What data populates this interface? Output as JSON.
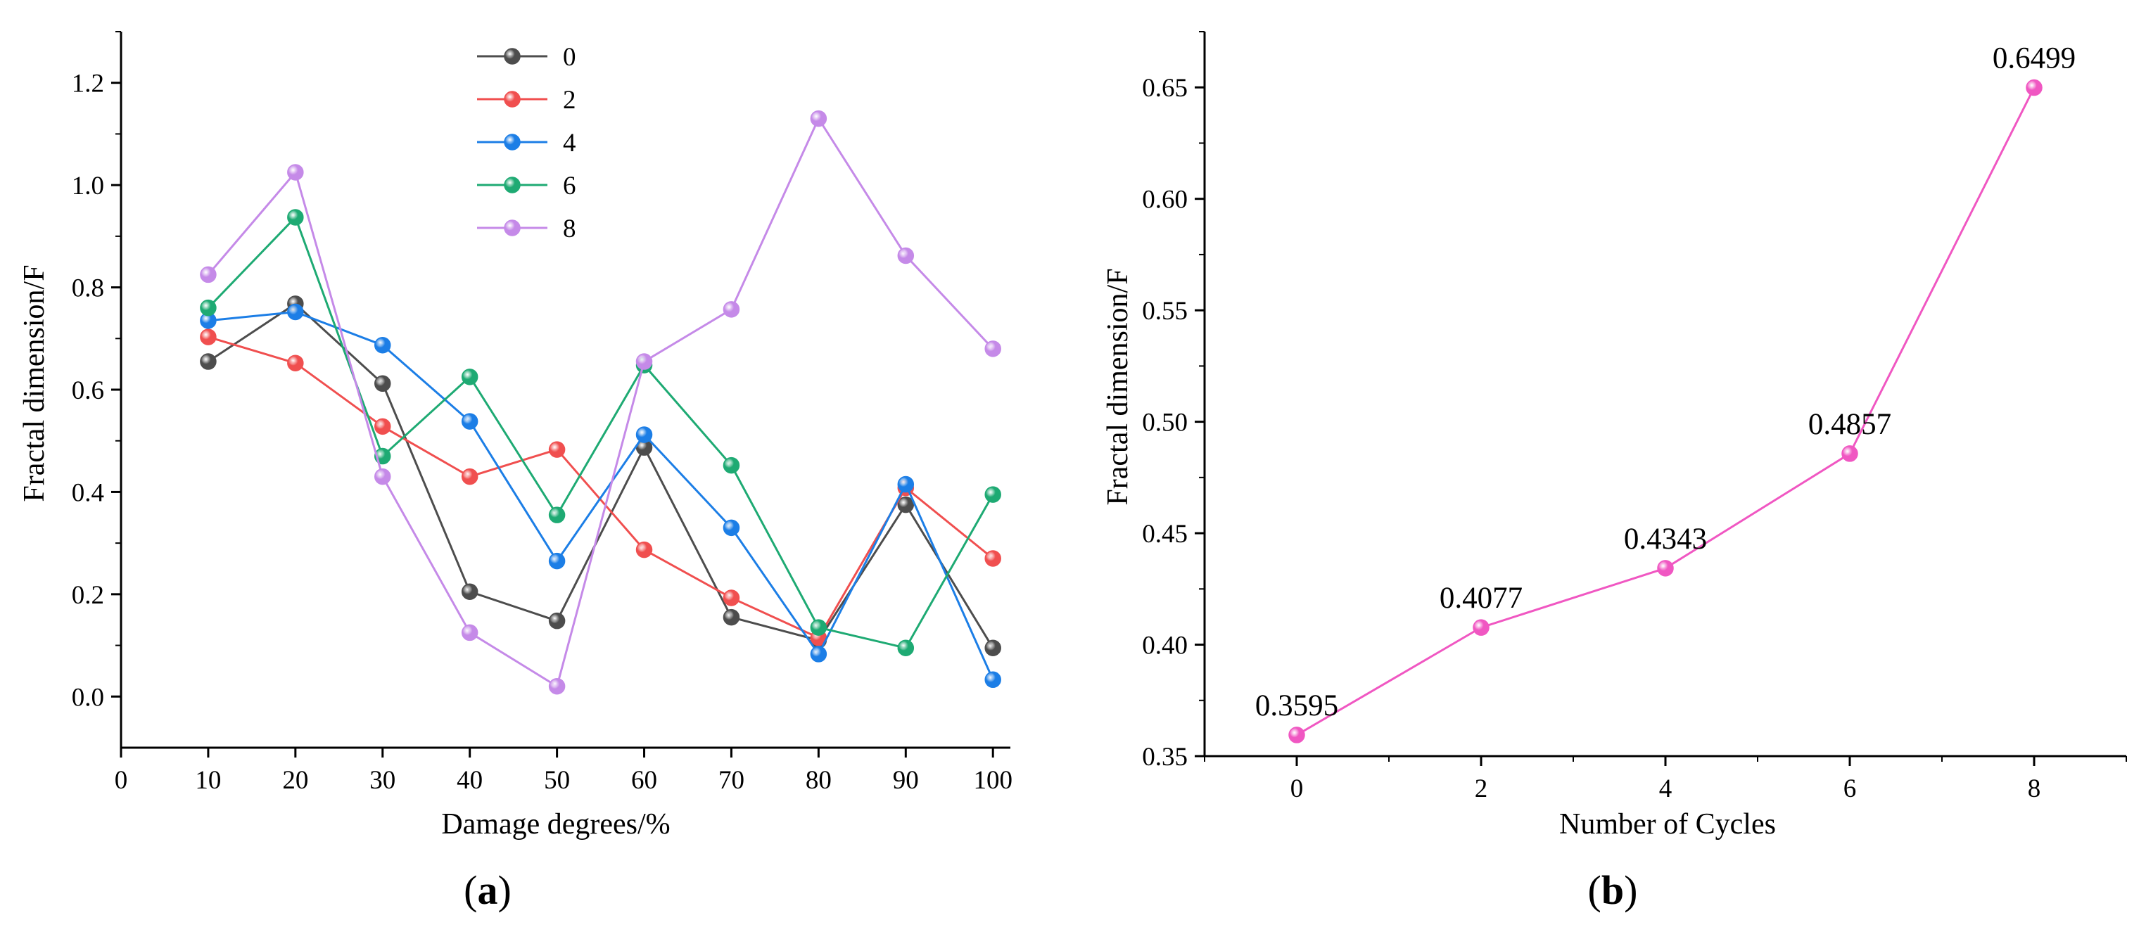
{
  "chart_data": [
    {
      "type": "line",
      "panel_label": "(a)",
      "panel_letter": "a",
      "xlabel": "Damage degrees/%",
      "ylabel": "Fractal dimension/F",
      "xlim": [
        0,
        102
      ],
      "ylim": [
        -0.1,
        1.3
      ],
      "xticks": [
        0,
        10,
        20,
        30,
        40,
        50,
        60,
        70,
        80,
        90,
        100
      ],
      "yticks": [
        0.0,
        0.2,
        0.4,
        0.6,
        0.8,
        1.0,
        1.2
      ],
      "ytick_labels": [
        "0.0",
        "0.2",
        "0.4",
        "0.6",
        "0.8",
        "1.0",
        "1.2"
      ],
      "legend_position": "top-center",
      "x": [
        10,
        20,
        30,
        40,
        50,
        60,
        70,
        80,
        90,
        100
      ],
      "series": [
        {
          "name": "0",
          "color": "#4d4d4d",
          "values": [
            0.655,
            0.768,
            0.612,
            0.205,
            0.148,
            0.487,
            0.155,
            0.11,
            0.375,
            0.095
          ]
        },
        {
          "name": "2",
          "color": "#f04f4f",
          "values": [
            0.703,
            0.652,
            0.528,
            0.43,
            0.483,
            0.287,
            0.193,
            0.115,
            0.408,
            0.27
          ]
        },
        {
          "name": "4",
          "color": "#1c7ee6",
          "values": [
            0.735,
            0.752,
            0.687,
            0.538,
            0.265,
            0.512,
            0.33,
            0.083,
            0.415,
            0.033
          ]
        },
        {
          "name": "6",
          "color": "#1eaa73",
          "values": [
            0.76,
            0.937,
            0.47,
            0.625,
            0.355,
            0.648,
            0.452,
            0.135,
            0.095,
            0.395
          ]
        },
        {
          "name": "8",
          "color": "#c58ae8",
          "values": [
            0.825,
            1.025,
            0.43,
            0.125,
            0.02,
            0.655,
            0.757,
            1.13,
            0.862,
            0.68
          ]
        }
      ]
    },
    {
      "type": "line",
      "panel_label": "(b)",
      "panel_letter": "b",
      "xlabel": "Number of Cycles",
      "ylabel": "Fractal dimension/F",
      "xlim": [
        -1.0,
        9.0
      ],
      "ylim": [
        0.35,
        0.675
      ],
      "xticks": [
        0,
        2,
        4,
        6,
        8
      ],
      "yticks": [
        0.35,
        0.4,
        0.45,
        0.5,
        0.55,
        0.6,
        0.65
      ],
      "ytick_labels": [
        "0.35",
        "0.40",
        "0.45",
        "0.50",
        "0.55",
        "0.60",
        "0.65"
      ],
      "x": [
        0,
        2,
        4,
        6,
        8
      ],
      "series": [
        {
          "name": "Fractal dimension",
          "color": "#f057c2",
          "values": [
            0.3595,
            0.4077,
            0.4343,
            0.4857,
            0.6499
          ],
          "labels": [
            "0.3595",
            "0.4077",
            "0.4343",
            "0.4857",
            "0.6499"
          ]
        }
      ]
    }
  ]
}
